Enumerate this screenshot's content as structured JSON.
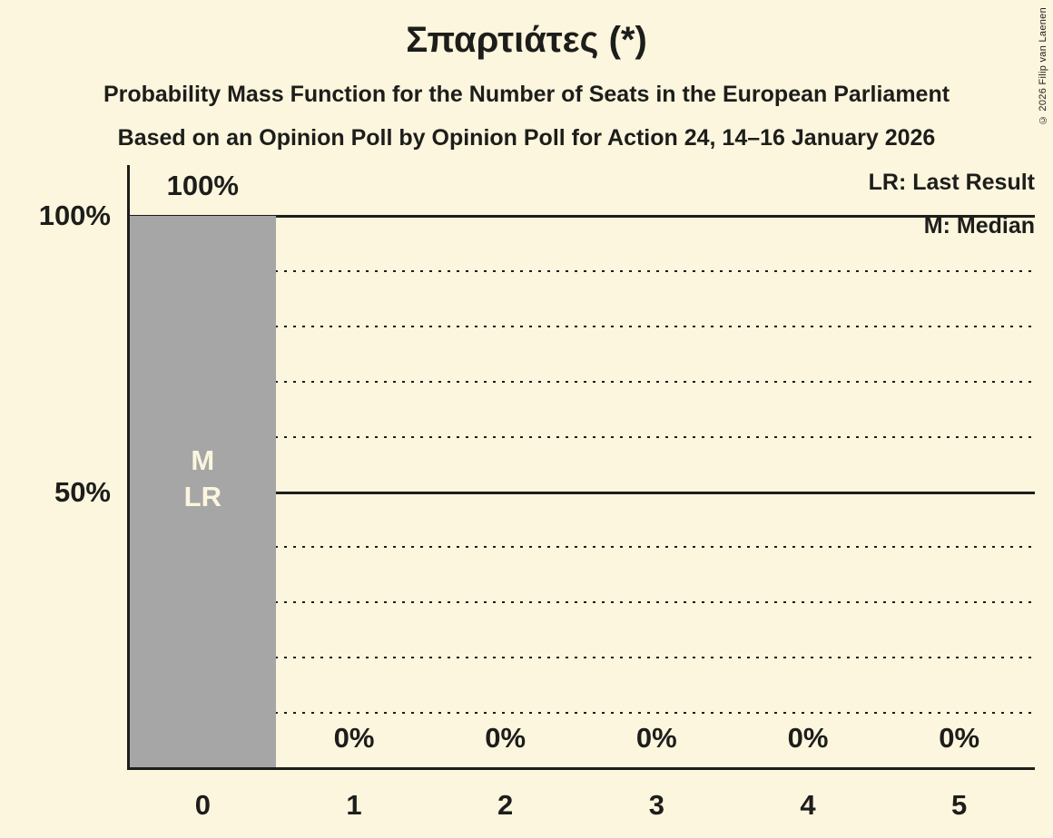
{
  "title": "Σπαρτιάτες (*)",
  "subtitle": "Probability Mass Function for the Number of Seats in the European Parliament",
  "poll_line": "Based on an Opinion Poll by Opinion Poll for Action 24, 14–16 January 2026",
  "copyright": "© 2026 Filip van Laenen",
  "legend": {
    "last_result": "LR: Last Result",
    "median": "M: Median"
  },
  "colors": {
    "background": "#FBF6DD",
    "bar": "#A6A6A6",
    "text": "#1D1D1B",
    "bar_annotation_text": "#FBF6DD"
  },
  "chart_data": {
    "type": "bar",
    "title": "Σπαρτιάτες (*)",
    "categories": [
      "0",
      "1",
      "2",
      "3",
      "4",
      "5"
    ],
    "values": [
      100,
      0,
      0,
      0,
      0,
      0
    ],
    "value_labels": [
      "100%",
      "0%",
      "0%",
      "0%",
      "0%",
      "0%"
    ],
    "bar_annotations": [
      [
        "M",
        "LR"
      ],
      [],
      [],
      [],
      [],
      []
    ],
    "median_category": "0",
    "last_result_category": "0",
    "ylim": [
      0,
      100
    ],
    "y_ticks": [
      {
        "value": 100,
        "label": "100%"
      },
      {
        "value": 50,
        "label": "50%"
      }
    ],
    "solid_gridlines_pct": [
      50,
      100
    ],
    "dotted_gridlines_pct": [
      10,
      20,
      30,
      40,
      60,
      70,
      80,
      90
    ],
    "legend_position": "top-right",
    "grid": "dotted every 10%, solid at 50% and 100%"
  }
}
